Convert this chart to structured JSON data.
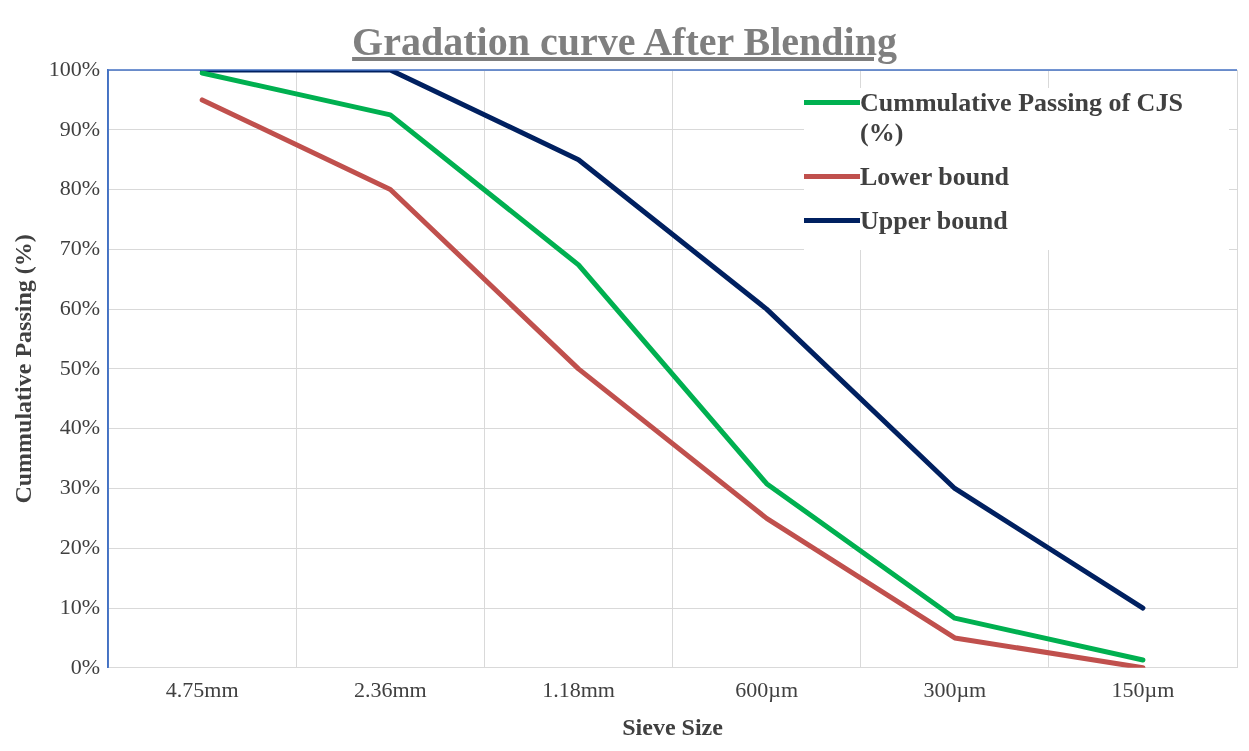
{
  "chart_data": {
    "type": "line",
    "title": "Gradation curve After Blending",
    "xlabel": "Sieve Size",
    "ylabel": "Cummulative Passing (%)",
    "categories": [
      "4.75mm",
      "2.36mm",
      "1.18mm",
      "600µm",
      "300µm",
      "150µm"
    ],
    "series": [
      {
        "name": "Cummulative Passing of CJS (%)",
        "color": "#00b050",
        "values": [
          99.5,
          92.5,
          67.4,
          30.8,
          8.3,
          1.3
        ]
      },
      {
        "name": "Lower bound",
        "color": "#c0504d",
        "values": [
          95,
          80,
          50,
          25,
          5,
          0
        ]
      },
      {
        "name": "Upper bound",
        "color": "#002060",
        "values": [
          100,
          100,
          85,
          60,
          30,
          10
        ]
      }
    ],
    "ylim": [
      0,
      100
    ],
    "yticks": [
      {
        "value": 0,
        "label": "0%"
      },
      {
        "value": 10,
        "label": "10%"
      },
      {
        "value": 20,
        "label": "20%"
      },
      {
        "value": 30,
        "label": "30%"
      },
      {
        "value": 40,
        "label": "40%"
      },
      {
        "value": 50,
        "label": "50%"
      },
      {
        "value": 60,
        "label": "60%"
      },
      {
        "value": 70,
        "label": "70%"
      },
      {
        "value": 80,
        "label": "80%"
      },
      {
        "value": 90,
        "label": "90%"
      },
      {
        "value": 100,
        "label": "100%"
      }
    ],
    "grid": true,
    "legend": "top right",
    "marker": "none",
    "line_style": "solid"
  }
}
